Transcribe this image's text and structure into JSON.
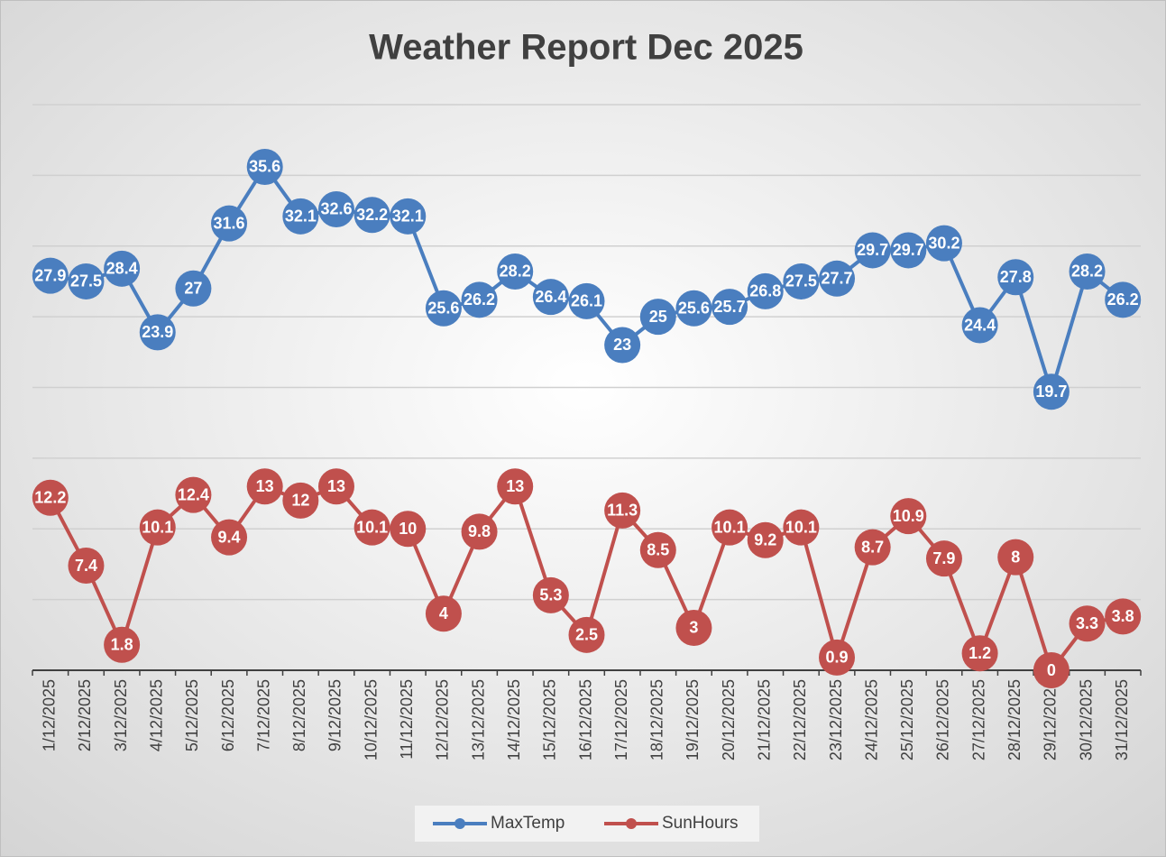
{
  "chart_data": {
    "type": "line",
    "title": "Weather Report Dec 2025",
    "categories": [
      "1/12/2025",
      "2/12/2025",
      "3/12/2025",
      "4/12/2025",
      "5/12/2025",
      "6/12/2025",
      "7/12/2025",
      "8/12/2025",
      "9/12/2025",
      "10/12/2025",
      "11/12/2025",
      "12/12/2025",
      "13/12/2025",
      "14/12/2025",
      "15/12/2025",
      "16/12/2025",
      "17/12/2025",
      "18/12/2025",
      "19/12/2025",
      "20/12/2025",
      "21/12/2025",
      "22/12/2025",
      "23/12/2025",
      "24/12/2025",
      "25/12/2025",
      "26/12/2025",
      "27/12/2025",
      "28/12/2025",
      "29/12/2025",
      "30/12/2025",
      "31/12/2025"
    ],
    "series": [
      {
        "name": "MaxTemp",
        "color": "#4a7ebf",
        "values": [
          27.9,
          27.5,
          28.4,
          23.9,
          27,
          31.6,
          35.6,
          32.1,
          32.6,
          32.2,
          32.1,
          25.6,
          26.2,
          28.2,
          26.4,
          26.1,
          23,
          25,
          25.6,
          25.7,
          26.8,
          27.5,
          27.7,
          29.7,
          29.7,
          30.2,
          24.4,
          27.8,
          19.7,
          28.2,
          26.2
        ]
      },
      {
        "name": "SunHours",
        "color": "#c0504d",
        "values": [
          12.2,
          7.4,
          1.8,
          10.1,
          12.4,
          9.4,
          13,
          12,
          13,
          10.1,
          10,
          4,
          9.8,
          13,
          5.3,
          2.5,
          11.3,
          8.5,
          3,
          10.1,
          9.2,
          10.1,
          0.9,
          8.7,
          10.9,
          7.9,
          1.2,
          8,
          0,
          3.3,
          3.8
        ]
      }
    ],
    "ylim": [
      0,
      40
    ],
    "yticks": [
      0,
      5,
      10,
      15,
      20,
      25,
      30,
      35,
      40
    ],
    "grid": true,
    "legend": "bottom"
  }
}
